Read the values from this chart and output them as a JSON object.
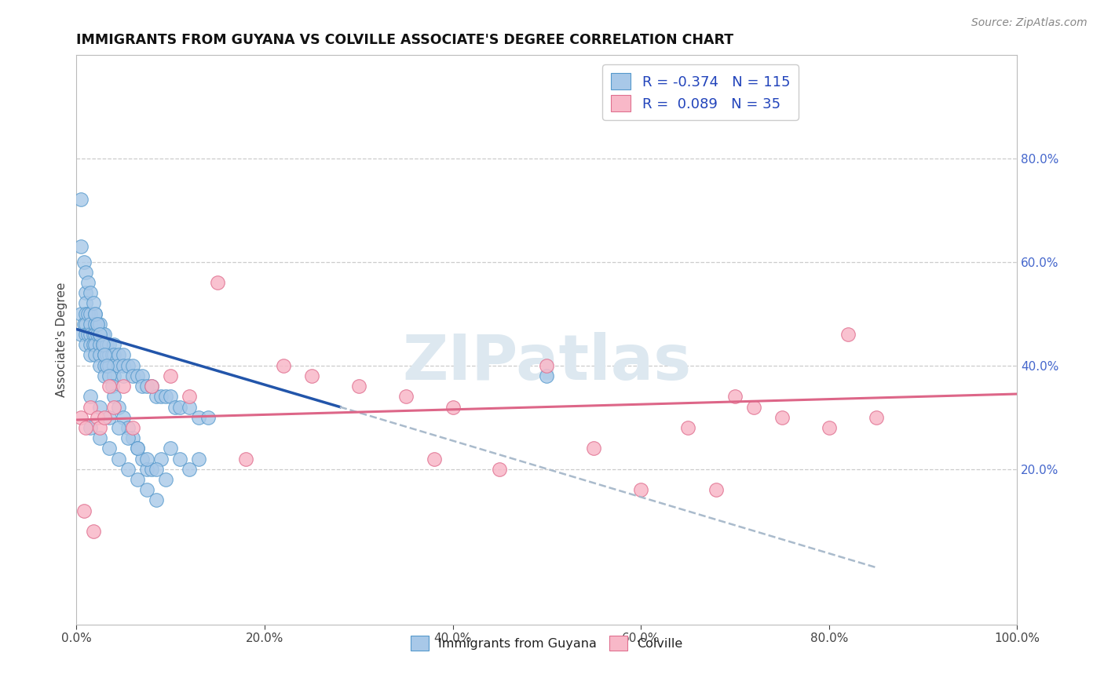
{
  "title": "IMMIGRANTS FROM GUYANA VS COLVILLE ASSOCIATE'S DEGREE CORRELATION CHART",
  "source_text": "Source: ZipAtlas.com",
  "ylabel": "Associate's Degree",
  "xlim": [
    0.0,
    1.0
  ],
  "ylim": [
    -0.1,
    1.0
  ],
  "xtick_labels": [
    "0.0%",
    "20.0%",
    "40.0%",
    "60.0%",
    "80.0%",
    "100.0%"
  ],
  "xtick_values": [
    0.0,
    0.2,
    0.4,
    0.6,
    0.8,
    1.0
  ],
  "ytick_right_labels": [
    "20.0%",
    "40.0%",
    "60.0%",
    "80.0%"
  ],
  "ytick_right_values": [
    0.2,
    0.4,
    0.6,
    0.8
  ],
  "legend_blue_label": "R = -0.374   N = 115",
  "legend_pink_label": "R =  0.089   N = 35",
  "blue_color": "#a8c8e8",
  "pink_color": "#f8b8c8",
  "blue_edge": "#5599cc",
  "pink_edge": "#e07090",
  "blue_trend_color": "#2255aa",
  "pink_trend_color": "#dd6688",
  "gray_dash_color": "#aabbcc",
  "watermark_color": "#dde8f0",
  "watermark_text": "ZIPatlas",
  "legend_bottom_blue": "Immigrants from Guyana",
  "legend_bottom_pink": "Colville",
  "blue_scatter_x": [
    0.005,
    0.005,
    0.005,
    0.008,
    0.01,
    0.01,
    0.01,
    0.01,
    0.01,
    0.01,
    0.012,
    0.012,
    0.015,
    0.015,
    0.015,
    0.015,
    0.015,
    0.018,
    0.018,
    0.02,
    0.02,
    0.02,
    0.02,
    0.02,
    0.022,
    0.022,
    0.025,
    0.025,
    0.025,
    0.025,
    0.025,
    0.028,
    0.028,
    0.03,
    0.03,
    0.03,
    0.03,
    0.03,
    0.032,
    0.032,
    0.035,
    0.035,
    0.035,
    0.038,
    0.04,
    0.04,
    0.04,
    0.04,
    0.045,
    0.045,
    0.05,
    0.05,
    0.05,
    0.055,
    0.06,
    0.06,
    0.065,
    0.07,
    0.07,
    0.075,
    0.08,
    0.085,
    0.09,
    0.095,
    0.1,
    0.105,
    0.11,
    0.12,
    0.13,
    0.14,
    0.005,
    0.008,
    0.01,
    0.012,
    0.015,
    0.018,
    0.02,
    0.022,
    0.025,
    0.028,
    0.03,
    0.032,
    0.035,
    0.038,
    0.04,
    0.045,
    0.05,
    0.055,
    0.06,
    0.065,
    0.07,
    0.075,
    0.08,
    0.09,
    0.1,
    0.11,
    0.12,
    0.13,
    0.015,
    0.025,
    0.035,
    0.045,
    0.055,
    0.065,
    0.075,
    0.085,
    0.095,
    0.015,
    0.025,
    0.035,
    0.045,
    0.055,
    0.065,
    0.075,
    0.085,
    0.5
  ],
  "blue_scatter_y": [
    0.72,
    0.5,
    0.46,
    0.48,
    0.54,
    0.52,
    0.5,
    0.48,
    0.46,
    0.44,
    0.5,
    0.46,
    0.5,
    0.48,
    0.46,
    0.44,
    0.42,
    0.46,
    0.44,
    0.5,
    0.48,
    0.46,
    0.44,
    0.42,
    0.48,
    0.46,
    0.48,
    0.46,
    0.44,
    0.42,
    0.4,
    0.46,
    0.44,
    0.46,
    0.44,
    0.42,
    0.4,
    0.38,
    0.44,
    0.42,
    0.44,
    0.42,
    0.4,
    0.42,
    0.44,
    0.42,
    0.4,
    0.38,
    0.42,
    0.4,
    0.42,
    0.4,
    0.38,
    0.4,
    0.4,
    0.38,
    0.38,
    0.38,
    0.36,
    0.36,
    0.36,
    0.34,
    0.34,
    0.34,
    0.34,
    0.32,
    0.32,
    0.32,
    0.3,
    0.3,
    0.63,
    0.6,
    0.58,
    0.56,
    0.54,
    0.52,
    0.5,
    0.48,
    0.46,
    0.44,
    0.42,
    0.4,
    0.38,
    0.36,
    0.34,
    0.32,
    0.3,
    0.28,
    0.26,
    0.24,
    0.22,
    0.2,
    0.2,
    0.22,
    0.24,
    0.22,
    0.2,
    0.22,
    0.34,
    0.32,
    0.3,
    0.28,
    0.26,
    0.24,
    0.22,
    0.2,
    0.18,
    0.28,
    0.26,
    0.24,
    0.22,
    0.2,
    0.18,
    0.16,
    0.14,
    0.38
  ],
  "pink_scatter_x": [
    0.005,
    0.008,
    0.01,
    0.015,
    0.018,
    0.022,
    0.025,
    0.03,
    0.035,
    0.04,
    0.05,
    0.06,
    0.08,
    0.1,
    0.12,
    0.15,
    0.18,
    0.22,
    0.25,
    0.3,
    0.35,
    0.4,
    0.5,
    0.55,
    0.6,
    0.65,
    0.7,
    0.72,
    0.75,
    0.8,
    0.82,
    0.85,
    0.38,
    0.45,
    0.68
  ],
  "pink_scatter_y": [
    0.3,
    0.12,
    0.28,
    0.32,
    0.08,
    0.3,
    0.28,
    0.3,
    0.36,
    0.32,
    0.36,
    0.28,
    0.36,
    0.38,
    0.34,
    0.56,
    0.22,
    0.4,
    0.38,
    0.36,
    0.34,
    0.32,
    0.4,
    0.24,
    0.16,
    0.28,
    0.34,
    0.32,
    0.3,
    0.28,
    0.46,
    0.3,
    0.22,
    0.2,
    0.16
  ],
  "blue_trend_x0": 0.0,
  "blue_trend_y0": 0.47,
  "blue_trend_x1": 0.28,
  "blue_trend_y1": 0.32,
  "blue_trend_ext_x0": 0.28,
  "blue_trend_ext_y0": 0.32,
  "blue_trend_ext_x1": 0.85,
  "blue_trend_ext_y1": 0.01,
  "pink_trend_x0": 0.0,
  "pink_trend_y0": 0.295,
  "pink_trend_x1": 1.0,
  "pink_trend_y1": 0.345
}
